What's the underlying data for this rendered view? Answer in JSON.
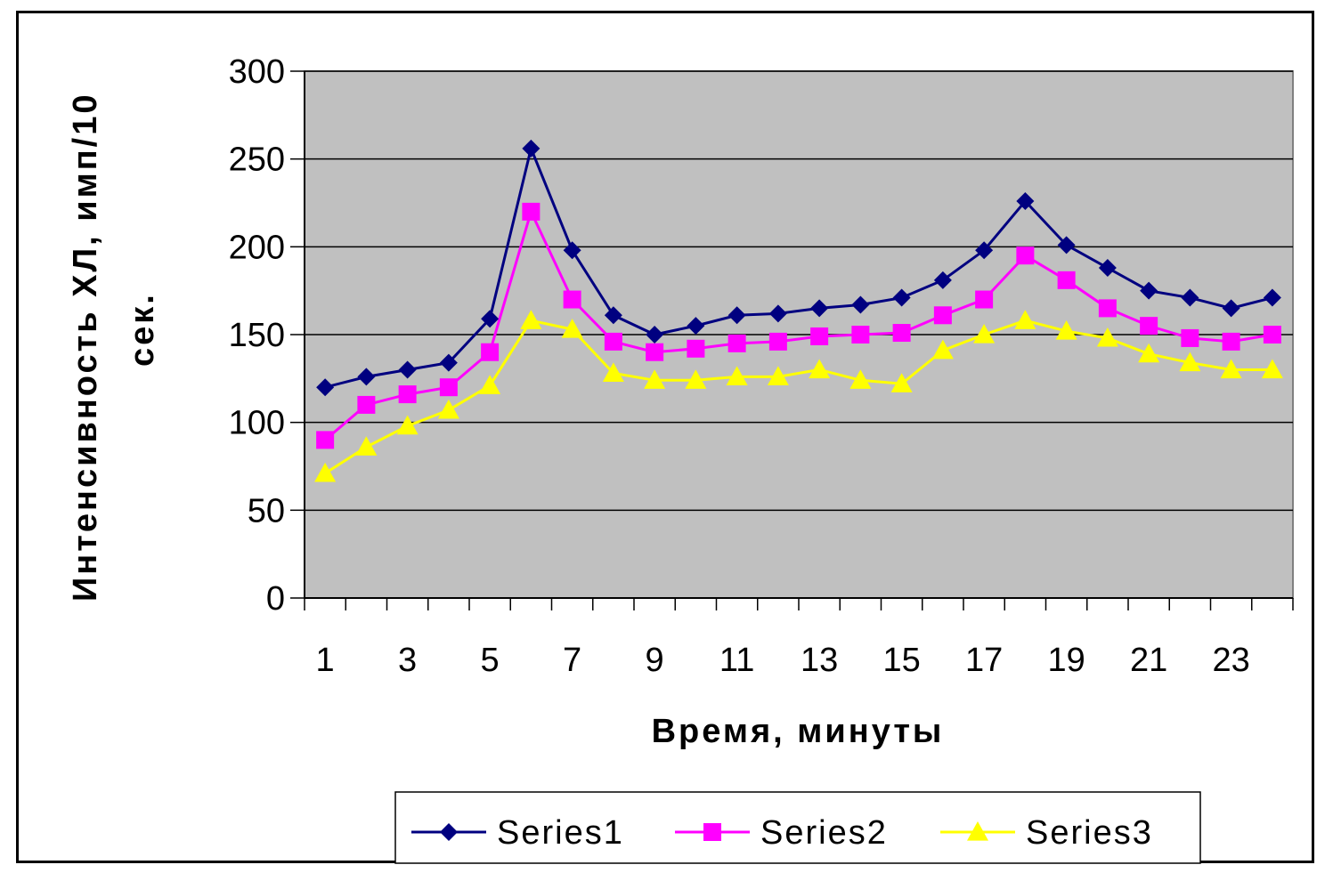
{
  "chart_data": {
    "type": "line",
    "x": [
      1,
      2,
      3,
      4,
      5,
      6,
      7,
      8,
      9,
      10,
      11,
      12,
      13,
      14,
      15,
      16,
      17,
      18,
      19,
      20,
      21,
      22,
      23,
      24
    ],
    "x_tick_labels": [
      "1",
      "3",
      "5",
      "7",
      "9",
      "11",
      "13",
      "15",
      "17",
      "19",
      "21",
      "23"
    ],
    "y_tick_labels": [
      "0",
      "50",
      "100",
      "150",
      "200",
      "250",
      "300"
    ],
    "ylim": [
      0,
      300
    ],
    "xlabel": "Время, минуты",
    "ylabel_line1": "Интенсивность ХЛ, имп/10",
    "ylabel_line2": "сек.",
    "grid": true,
    "plot_background": "#c0c0c0",
    "legend_position": "bottom",
    "series": [
      {
        "name": "Series1",
        "color": "#000080",
        "marker": "diamond",
        "values": [
          120,
          126,
          130,
          134,
          159,
          256,
          198,
          161,
          150,
          155,
          161,
          162,
          165,
          167,
          171,
          181,
          198,
          226,
          201,
          188,
          175,
          171,
          165,
          171
        ]
      },
      {
        "name": "Series2",
        "color": "#ff00ff",
        "marker": "square",
        "values": [
          90,
          110,
          116,
          120,
          140,
          220,
          170,
          146,
          140,
          142,
          145,
          146,
          149,
          150,
          151,
          161,
          170,
          195,
          181,
          165,
          155,
          148,
          146,
          150
        ]
      },
      {
        "name": "Series3",
        "color": "#ffff00",
        "marker": "triangle",
        "values": [
          71,
          86,
          98,
          107,
          121,
          158,
          153,
          128,
          124,
          124,
          126,
          126,
          130,
          124,
          122,
          141,
          150,
          158,
          152,
          148,
          139,
          134,
          130,
          130
        ]
      }
    ]
  }
}
